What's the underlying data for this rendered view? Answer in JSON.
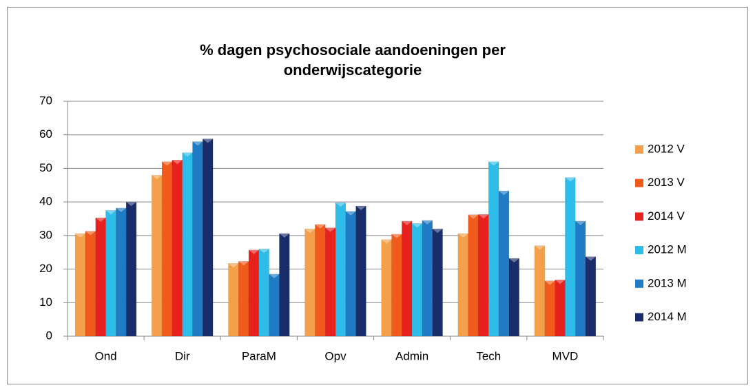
{
  "chart_data": {
    "type": "bar",
    "title": "% dagen psychosociale aandoeningen per onderwijscategorie",
    "categories": [
      "Ond",
      "Dir",
      "ParaM",
      "Opv",
      "Admin",
      "Tech",
      "MVD"
    ],
    "series": [
      {
        "name": "2012 V",
        "color": "#f4a04a",
        "values": [
          30.6,
          48,
          21.7,
          32,
          28.8,
          30.6,
          27
        ]
      },
      {
        "name": "2013 V",
        "color": "#f05a1a",
        "values": [
          31.3,
          52,
          22.3,
          33.3,
          30.4,
          36.2,
          16.5
        ]
      },
      {
        "name": "2014 V",
        "color": "#e8201e",
        "values": [
          35.3,
          52.5,
          25.7,
          32.3,
          34.3,
          36.3,
          16.8
        ]
      },
      {
        "name": "2012 M",
        "color": "#2ebde8",
        "values": [
          37.5,
          54.7,
          26,
          39.8,
          33.6,
          52,
          47.3
        ]
      },
      {
        "name": "2013 M",
        "color": "#1f7bc4",
        "values": [
          38.2,
          58,
          18.5,
          37.2,
          34.5,
          43.3,
          34.3
        ]
      },
      {
        "name": "2014 M",
        "color": "#1a2d6b",
        "values": [
          40,
          58.8,
          30.6,
          38.8,
          32,
          23.2,
          23.7
        ]
      }
    ],
    "ylim": [
      0,
      70
    ],
    "yticks": [
      0,
      10,
      20,
      30,
      40,
      50,
      60,
      70
    ],
    "grid": true,
    "legend": "right"
  }
}
